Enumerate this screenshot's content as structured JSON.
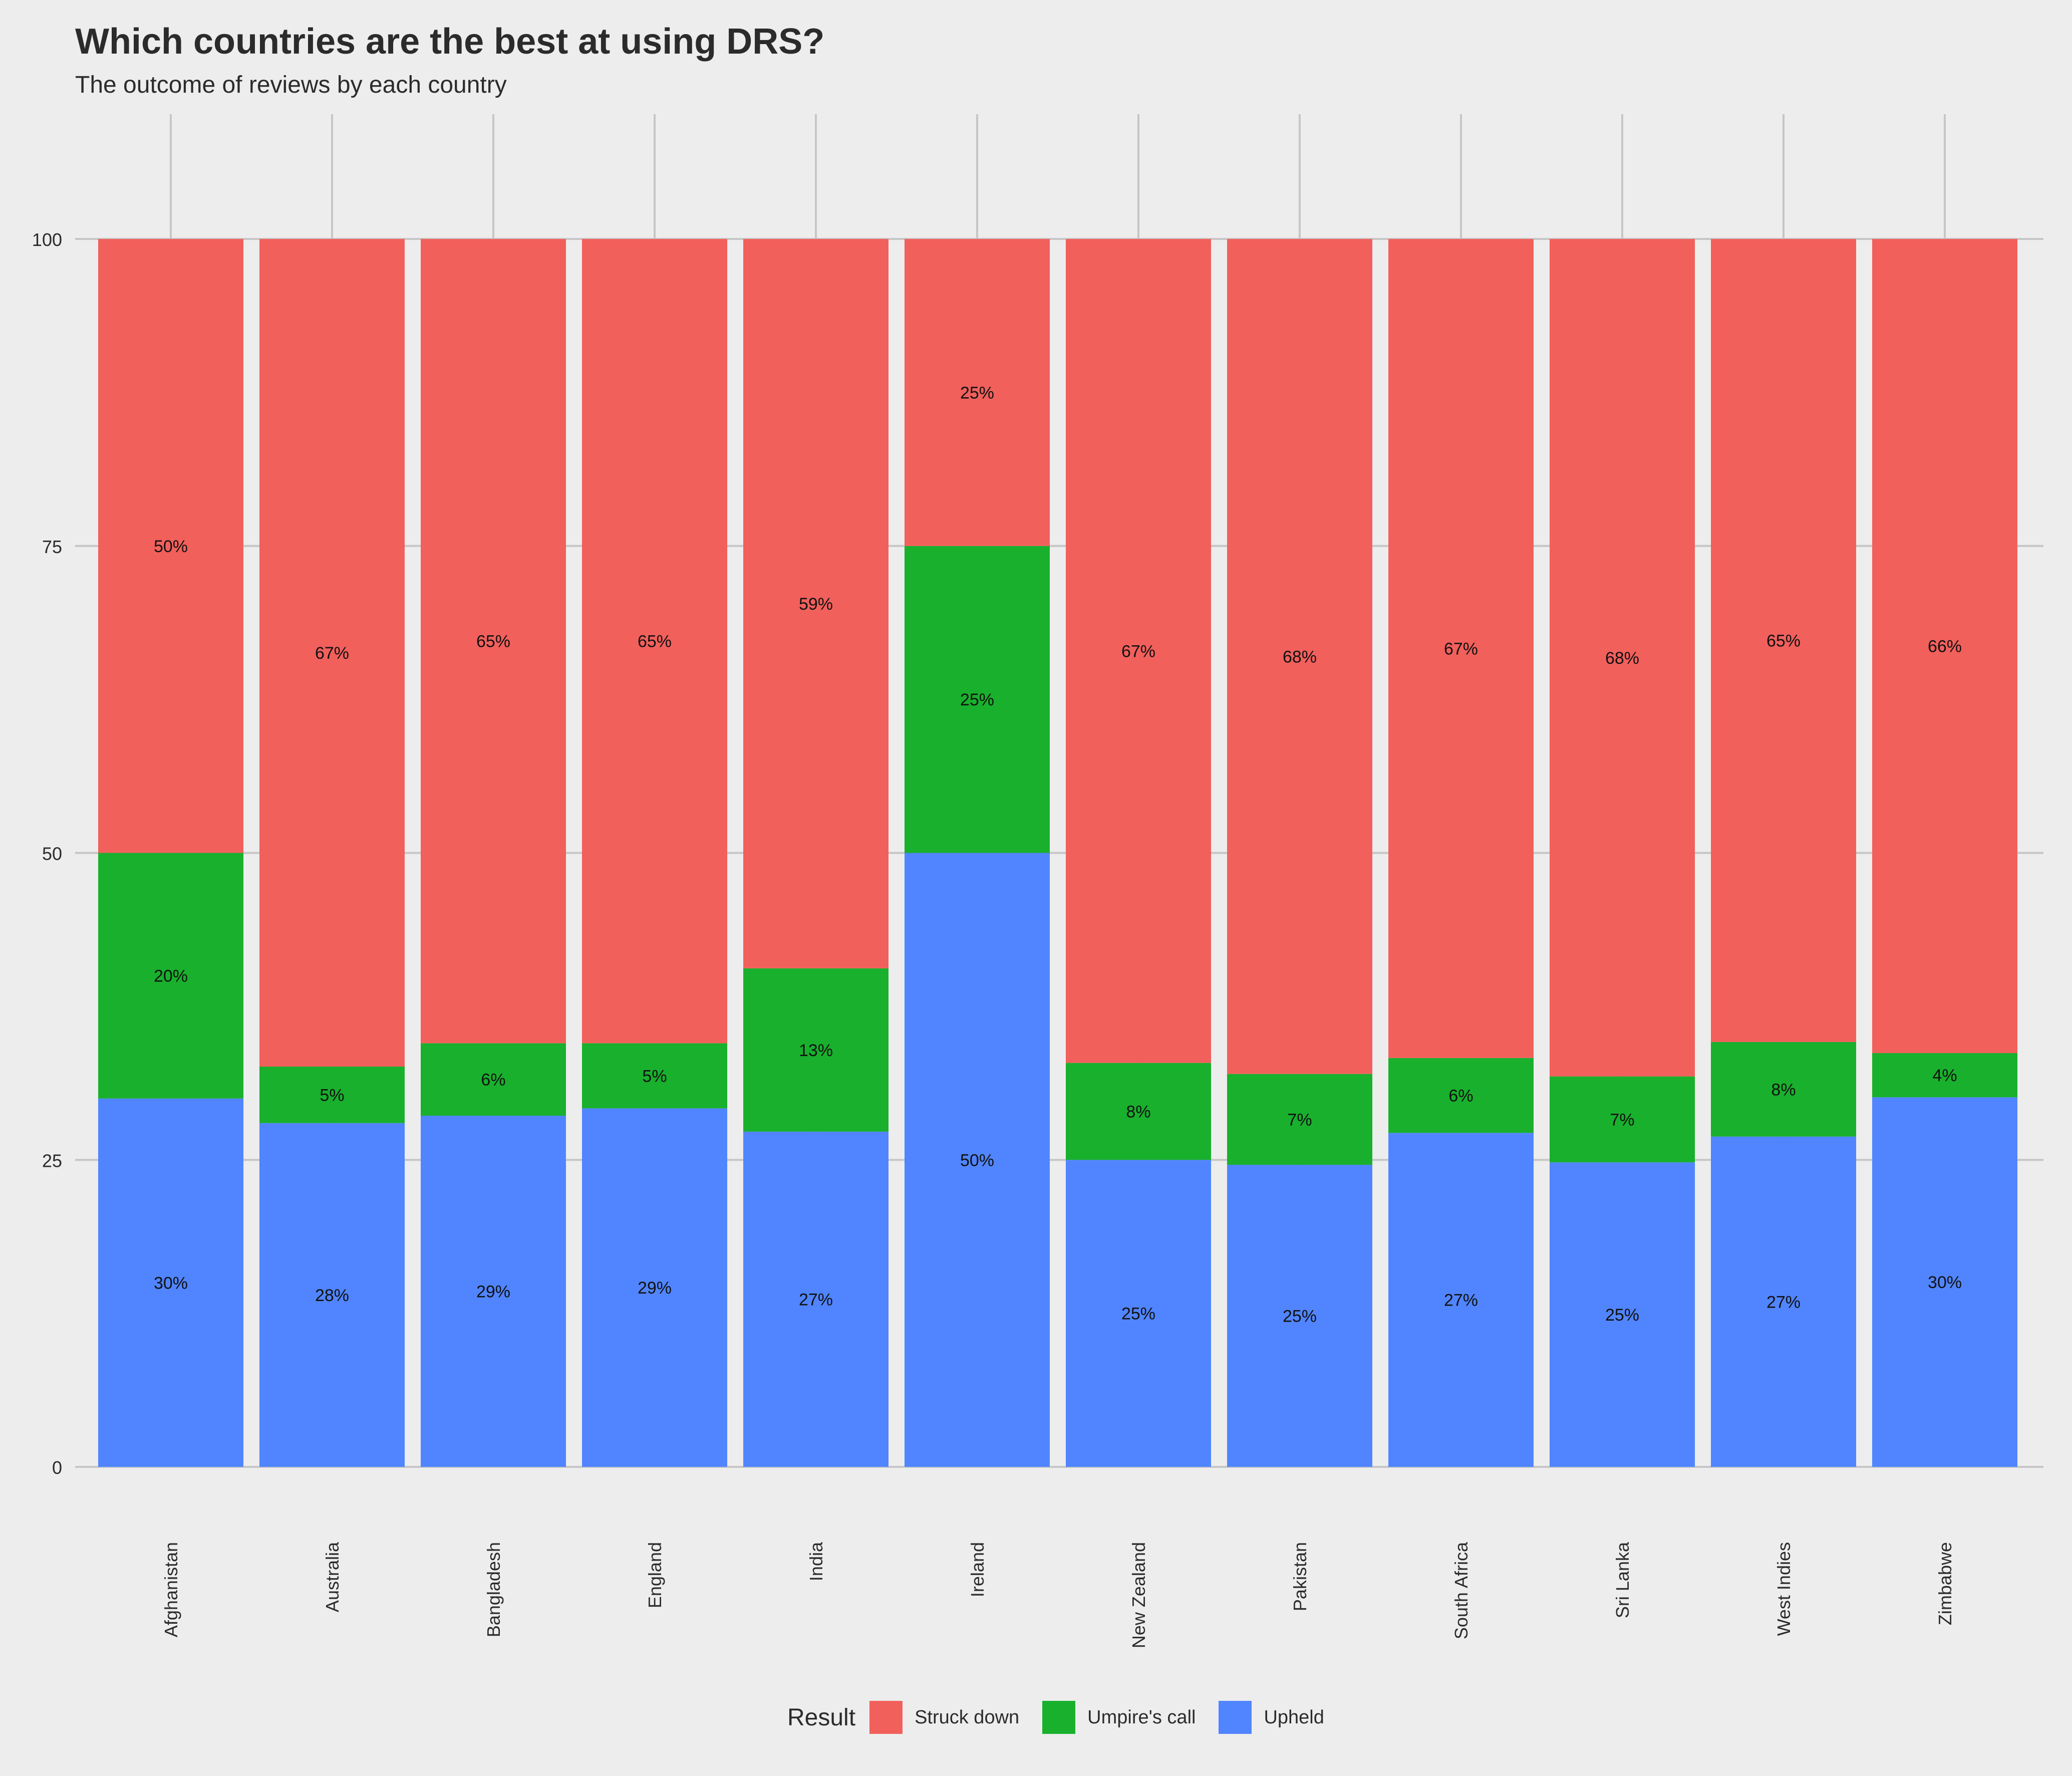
{
  "title": "Which countries are the best at using DRS?",
  "subtitle": "The outcome of reviews by each country",
  "legend": {
    "title": "Result",
    "items": [
      {
        "label": "Struck down",
        "color": "#f2605c"
      },
      {
        "label": "Umpire's call",
        "color": "#19b02d"
      },
      {
        "label": "Upheld",
        "color": "#5185ff"
      }
    ]
  },
  "chart_data": {
    "type": "bar",
    "stacked": true,
    "title": "Which countries are the best at using DRS?",
    "subtitle": "The outcome of reviews by each country",
    "xlabel": "",
    "ylabel": "",
    "ylim": [
      0,
      100
    ],
    "yticks": [
      0,
      25,
      50,
      75,
      100
    ],
    "grid": true,
    "legend_position": "bottom",
    "categories": [
      "Afghanistan",
      "Australia",
      "Bangladesh",
      "England",
      "India",
      "Ireland",
      "New Zealand",
      "Pakistan",
      "South Africa",
      "Sri Lanka",
      "West Indies",
      "Zimbabwe"
    ],
    "series": [
      {
        "name": "Upheld",
        "color": "#5185ff",
        "values": [
          30,
          28,
          28.6,
          29.2,
          27.3,
          50,
          25,
          24.6,
          27.2,
          24.8,
          26.9,
          30.1
        ],
        "labels": [
          "30%",
          "28%",
          "29%",
          "29%",
          "27%",
          "50%",
          "25%",
          "25%",
          "27%",
          "25%",
          "27%",
          "30%"
        ]
      },
      {
        "name": "Umpire's call",
        "color": "#19b02d",
        "values": [
          20,
          4.6,
          5.9,
          5.3,
          13.3,
          25,
          7.9,
          7.4,
          6.1,
          7.0,
          7.7,
          3.6
        ],
        "labels": [
          "20%",
          "5%",
          "6%",
          "5%",
          "13%",
          "25%",
          "8%",
          "7%",
          "6%",
          "7%",
          "8%",
          "4%"
        ]
      },
      {
        "name": "Struck down",
        "color": "#f2605c",
        "values": [
          50,
          67.4,
          65.5,
          65.5,
          59.4,
          25,
          67.1,
          68.0,
          66.7,
          68.2,
          65.4,
          66.3
        ],
        "labels": [
          "50%",
          "67%",
          "65%",
          "65%",
          "59%",
          "25%",
          "67%",
          "68%",
          "67%",
          "68%",
          "65%",
          "66%"
        ]
      }
    ]
  }
}
